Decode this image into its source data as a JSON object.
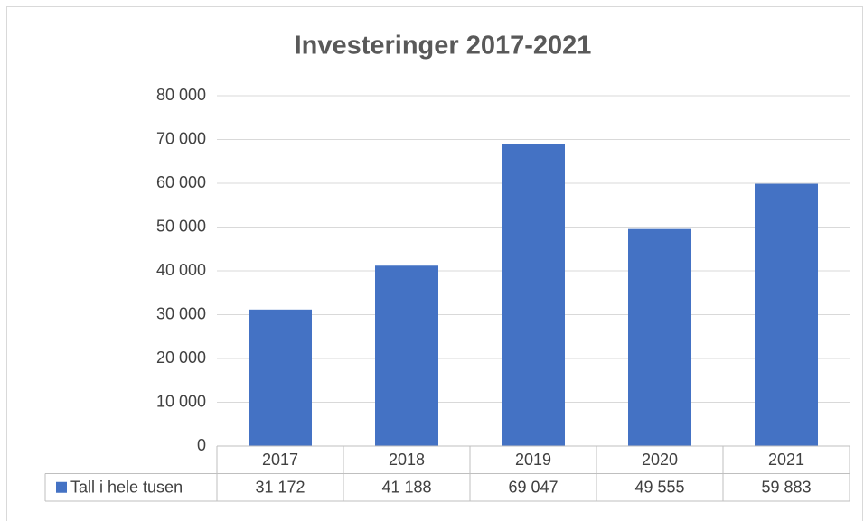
{
  "chart_data": {
    "type": "bar",
    "title": "Investeringer 2017-2021",
    "categories": [
      "2017",
      "2018",
      "2019",
      "2020",
      "2021"
    ],
    "series": [
      {
        "name": "Tall i hele tusen",
        "color": "#4472c4",
        "values": [
          31172,
          41188,
          69047,
          49555,
          59883
        ],
        "value_labels": [
          "31 172",
          "41 188",
          "69 047",
          "49 555",
          "59 883"
        ]
      }
    ],
    "ylim": [
      0,
      80000
    ],
    "yticks": [
      0,
      {
        "value": 10000,
        "label": "10 000"
      },
      {
        "value": 20000,
        "label": "20 000"
      },
      {
        "value": 30000,
        "label": "30 000"
      },
      {
        "value": 40000,
        "label": "40 000"
      },
      {
        "value": 50000,
        "label": "50 000"
      },
      {
        "value": 60000,
        "label": "60 000"
      },
      {
        "value": 70000,
        "label": "70 000"
      },
      {
        "value": 80000,
        "label": "80 000"
      }
    ],
    "grid": true,
    "data_table": true
  }
}
